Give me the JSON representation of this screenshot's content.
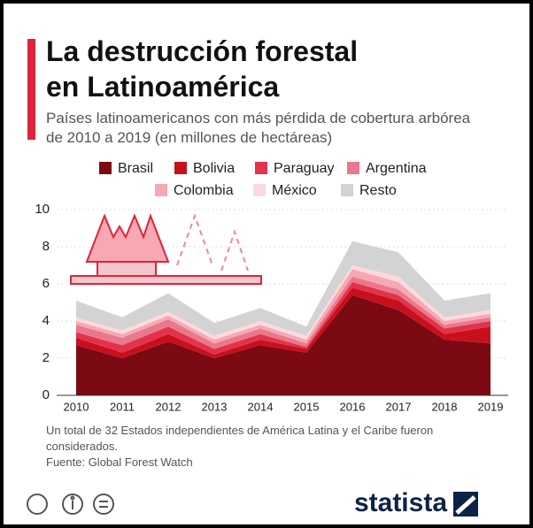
{
  "chart_data": {
    "type": "stacked_area",
    "title": "La destrucción forestal en Latinoamérica",
    "subtitle": "Países latinoamericanos con más pérdida de cobertura arbórea de 2010 a 2019 (en millones de hectáreas)",
    "x": [
      2010,
      2011,
      2012,
      2013,
      2014,
      2015,
      2016,
      2017,
      2018,
      2019
    ],
    "xlim": [
      2010,
      2019
    ],
    "ylim": [
      0,
      10
    ],
    "yticks": [
      0,
      2,
      4,
      6,
      8,
      10
    ],
    "series": [
      {
        "name": "Brasil",
        "color": "#7b0a12",
        "values": [
          2.7,
          2.0,
          2.9,
          2.0,
          2.7,
          2.3,
          5.4,
          4.6,
          3.0,
          2.8
        ]
      },
      {
        "name": "Bolivia",
        "color": "#c8101c",
        "values": [
          0.4,
          0.3,
          0.4,
          0.2,
          0.3,
          0.2,
          0.4,
          0.5,
          0.3,
          0.9
        ]
      },
      {
        "name": "Paraguay",
        "color": "#e2334a",
        "values": [
          0.3,
          0.4,
          0.4,
          0.3,
          0.3,
          0.1,
          0.3,
          0.3,
          0.3,
          0.3
        ]
      },
      {
        "name": "Argentina",
        "color": "#e8798c",
        "values": [
          0.4,
          0.4,
          0.4,
          0.3,
          0.3,
          0.2,
          0.3,
          0.3,
          0.2,
          0.2
        ]
      },
      {
        "name": "Colombia",
        "color": "#f7a8b3",
        "values": [
          0.2,
          0.2,
          0.2,
          0.2,
          0.2,
          0.2,
          0.4,
          0.4,
          0.2,
          0.2
        ]
      },
      {
        "name": "México",
        "color": "#fcd9de",
        "values": [
          0.2,
          0.2,
          0.2,
          0.2,
          0.2,
          0.2,
          0.2,
          0.3,
          0.2,
          0.2
        ]
      },
      {
        "name": "Resto",
        "color": "#d3d3d3",
        "values": [
          0.9,
          0.7,
          1.0,
          0.7,
          0.7,
          0.5,
          1.3,
          1.3,
          0.9,
          0.9
        ]
      }
    ],
    "note": "Un total de 32 Estados independientes de América Latina y el Caribe fueron considerados.",
    "source": "Fuente: Global Forest Watch",
    "logo": "statista"
  }
}
